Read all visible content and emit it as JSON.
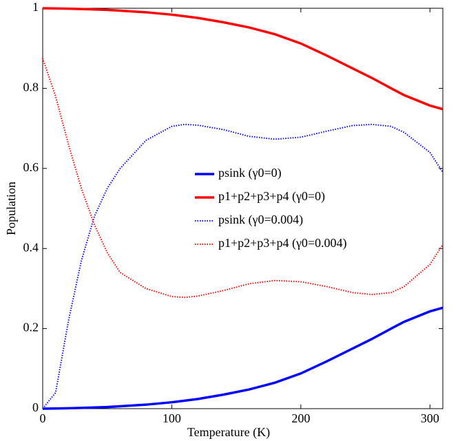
{
  "chart_data": {
    "type": "line",
    "xlabel": "Temperature (K)",
    "ylabel": "Population",
    "x": [
      0,
      10,
      20,
      30,
      40,
      50,
      60,
      80,
      100,
      110,
      120,
      140,
      160,
      180,
      200,
      220,
      240,
      255,
      270,
      280,
      300,
      310
    ],
    "series": [
      {
        "name": "psink (γ0=0)",
        "color": "#0000ff",
        "style": "solid",
        "values": [
          0,
          0.0005,
          0.001,
          0.002,
          0.003,
          0.004,
          0.006,
          0.01,
          0.016,
          0.02,
          0.024,
          0.035,
          0.048,
          0.065,
          0.088,
          0.118,
          0.15,
          0.174,
          0.2,
          0.217,
          0.243,
          0.252
        ]
      },
      {
        "name": "p1+p2+p3+p4 (γ0=0)",
        "color": "#ff0000",
        "style": "solid",
        "values": [
          1,
          0.9995,
          0.999,
          0.998,
          0.997,
          0.996,
          0.994,
          0.99,
          0.984,
          0.98,
          0.976,
          0.965,
          0.952,
          0.935,
          0.912,
          0.882,
          0.85,
          0.826,
          0.8,
          0.783,
          0.757,
          0.748
        ]
      },
      {
        "name": "psink (γ0=0.004)",
        "color": "#0000ff",
        "style": "dotted",
        "values": [
          0,
          0.04,
          0.22,
          0.37,
          0.48,
          0.55,
          0.6,
          0.67,
          0.705,
          0.71,
          0.708,
          0.697,
          0.68,
          0.673,
          0.678,
          0.693,
          0.707,
          0.71,
          0.705,
          0.69,
          0.64,
          0.59
        ]
      },
      {
        "name": "p1+p2+p3+p4 (γ0=0.004)",
        "color": "#ff0000",
        "style": "dotted",
        "values": [
          0.875,
          0.78,
          0.66,
          0.55,
          0.46,
          0.39,
          0.34,
          0.3,
          0.28,
          0.278,
          0.281,
          0.295,
          0.312,
          0.32,
          0.317,
          0.305,
          0.29,
          0.285,
          0.29,
          0.305,
          0.36,
          0.41
        ]
      }
    ],
    "xlim": [
      0,
      310
    ],
    "xticks": [
      0,
      100,
      200,
      300
    ],
    "ylim": [
      0,
      1
    ],
    "yticks": [
      0,
      0.2,
      0.4,
      0.6,
      0.8,
      1
    ],
    "legend": "center",
    "grid": false
  }
}
